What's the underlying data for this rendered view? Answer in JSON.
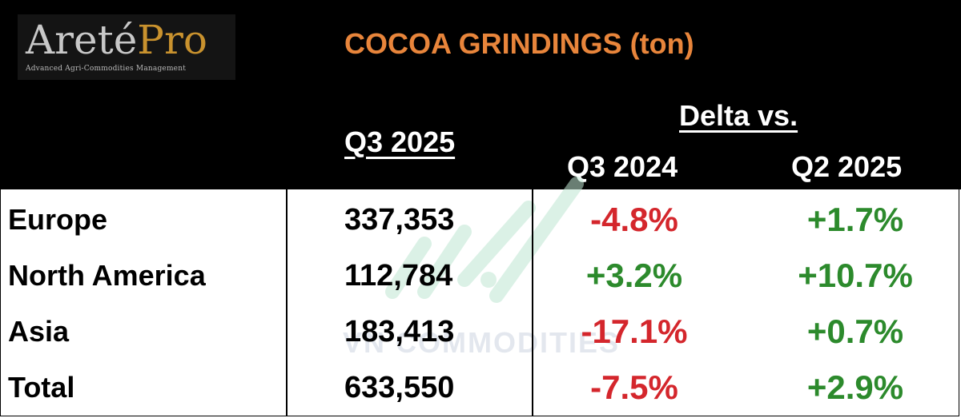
{
  "logo": {
    "name_part1": "Areté",
    "name_part2": "Pro",
    "tagline": "Advanced Agri-Commodities Management"
  },
  "title": "COCOA GRINDINGS (ton)",
  "headers": {
    "current": "Q3 2025",
    "delta_label": "Delta vs.",
    "delta_cols": [
      "Q3 2024",
      "Q2 2025"
    ]
  },
  "rows": [
    {
      "region": "Europe",
      "value": "337,353",
      "delta_q3_2024": "-4.8%",
      "delta_q2_2025": "+1.7%"
    },
    {
      "region": "North America",
      "value": "112,784",
      "delta_q3_2024": "+3.2%",
      "delta_q2_2025": "+10.7%"
    },
    {
      "region": "Asia",
      "value": "183,413",
      "delta_q3_2024": "-17.1%",
      "delta_q2_2025": "+0.7%"
    },
    {
      "region": "Total",
      "value": "633,550",
      "delta_q3_2024": "-7.5%",
      "delta_q2_2025": "+2.9%"
    }
  ],
  "watermark": "VN COMMODITIES",
  "colors": {
    "header_bg": "#000000",
    "title": "#e8853b",
    "negative": "#d4262c",
    "positive": "#2c8a2c",
    "logo_accent": "#c9922e"
  }
}
